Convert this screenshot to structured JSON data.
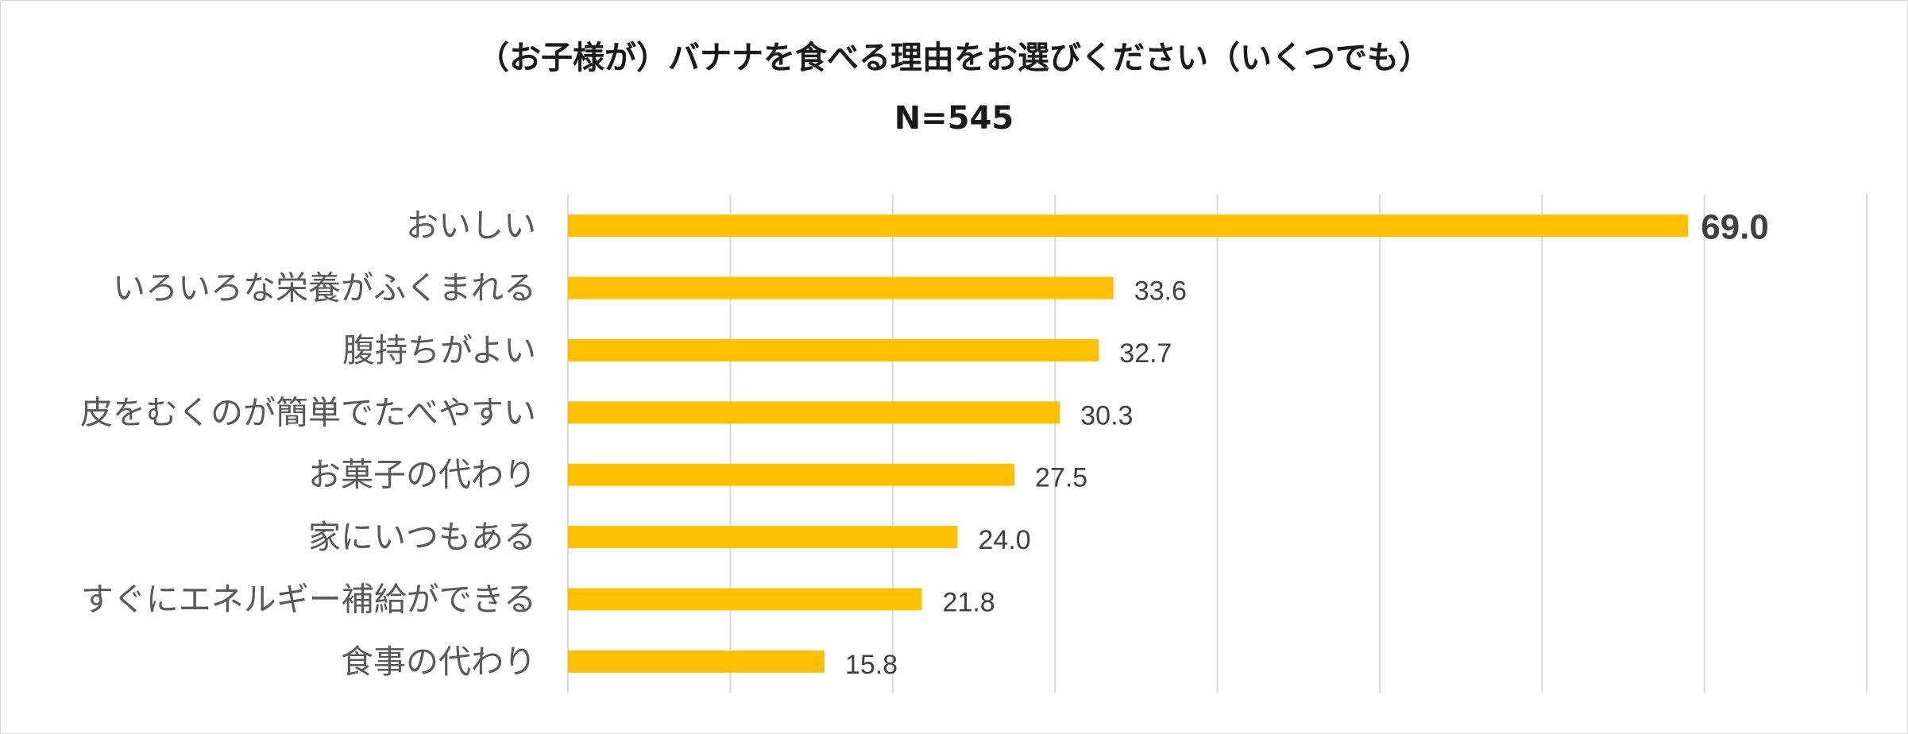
{
  "chart_data": {
    "type": "bar",
    "orientation": "horizontal",
    "title": "（お子様が）バナナを食べる理由をお選びください（いくつでも）",
    "subtitle": "N=545",
    "categories": [
      "おいしい",
      "いろいろな栄養がふくまれる",
      "腹持ちがよい",
      "皮をむくのが簡単でたべやすい",
      "お菓子の代わり",
      "家にいつもある",
      "すぐにエネルギー補給ができる",
      "食事の代わり"
    ],
    "values": [
      69.0,
      33.6,
      32.7,
      30.3,
      27.5,
      24.0,
      21.8,
      15.8
    ],
    "value_labels": [
      "69.0",
      "33.6",
      "32.7",
      "30.3",
      "27.5",
      "24.0",
      "21.8",
      "15.8"
    ],
    "xlim": [
      0,
      80
    ],
    "grid": true,
    "bar_color": "#FFC000",
    "gridline_color": "#d9d9d9",
    "highlight_first_label": true
  }
}
